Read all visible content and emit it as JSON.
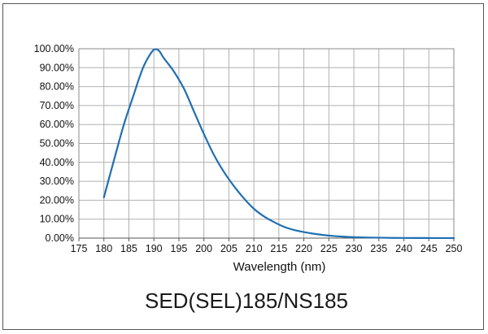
{
  "chart_data": {
    "type": "line",
    "title": "SED(SEL)185/NS185",
    "xlabel": "Wavelength (nm)",
    "ylabel": "",
    "xlim": [
      175,
      250
    ],
    "ylim": [
      0,
      100
    ],
    "x_ticks": [
      "175",
      "180",
      "185",
      "190",
      "195",
      "200",
      "205",
      "210",
      "215",
      "220",
      "225",
      "230",
      "235",
      "240",
      "245",
      "250"
    ],
    "y_ticks": [
      "0.00%",
      "10.00%",
      "20.00%",
      "30.00%",
      "40.00%",
      "50.00%",
      "60.00%",
      "70.00%",
      "80.00%",
      "90.00%",
      "100.00%"
    ],
    "grid": true,
    "legend": "none",
    "line_color": "#1f6fb2",
    "series": [
      {
        "x": [
          180,
          182,
          184,
          186,
          187,
          188,
          189,
          190,
          191,
          192,
          194,
          196,
          198,
          200,
          202,
          204,
          206,
          208,
          210,
          212,
          214,
          216,
          218,
          220,
          222,
          224,
          226,
          228,
          230,
          232,
          234,
          236,
          238,
          240,
          242,
          244,
          246,
          248,
          250
        ],
        "values": [
          21.5,
          41,
          60,
          76,
          84,
          91,
          96,
          99.5,
          99,
          95,
          88,
          79,
          67,
          55,
          44,
          35,
          27.5,
          21,
          15.5,
          11.5,
          8.5,
          6,
          4.3,
          3.2,
          2.3,
          1.6,
          1.1,
          0.75,
          0.5,
          0.35,
          0.25,
          0.18,
          0.12,
          0.08,
          0.05,
          0.04,
          0.03,
          0.02,
          0.01
        ]
      }
    ]
  }
}
